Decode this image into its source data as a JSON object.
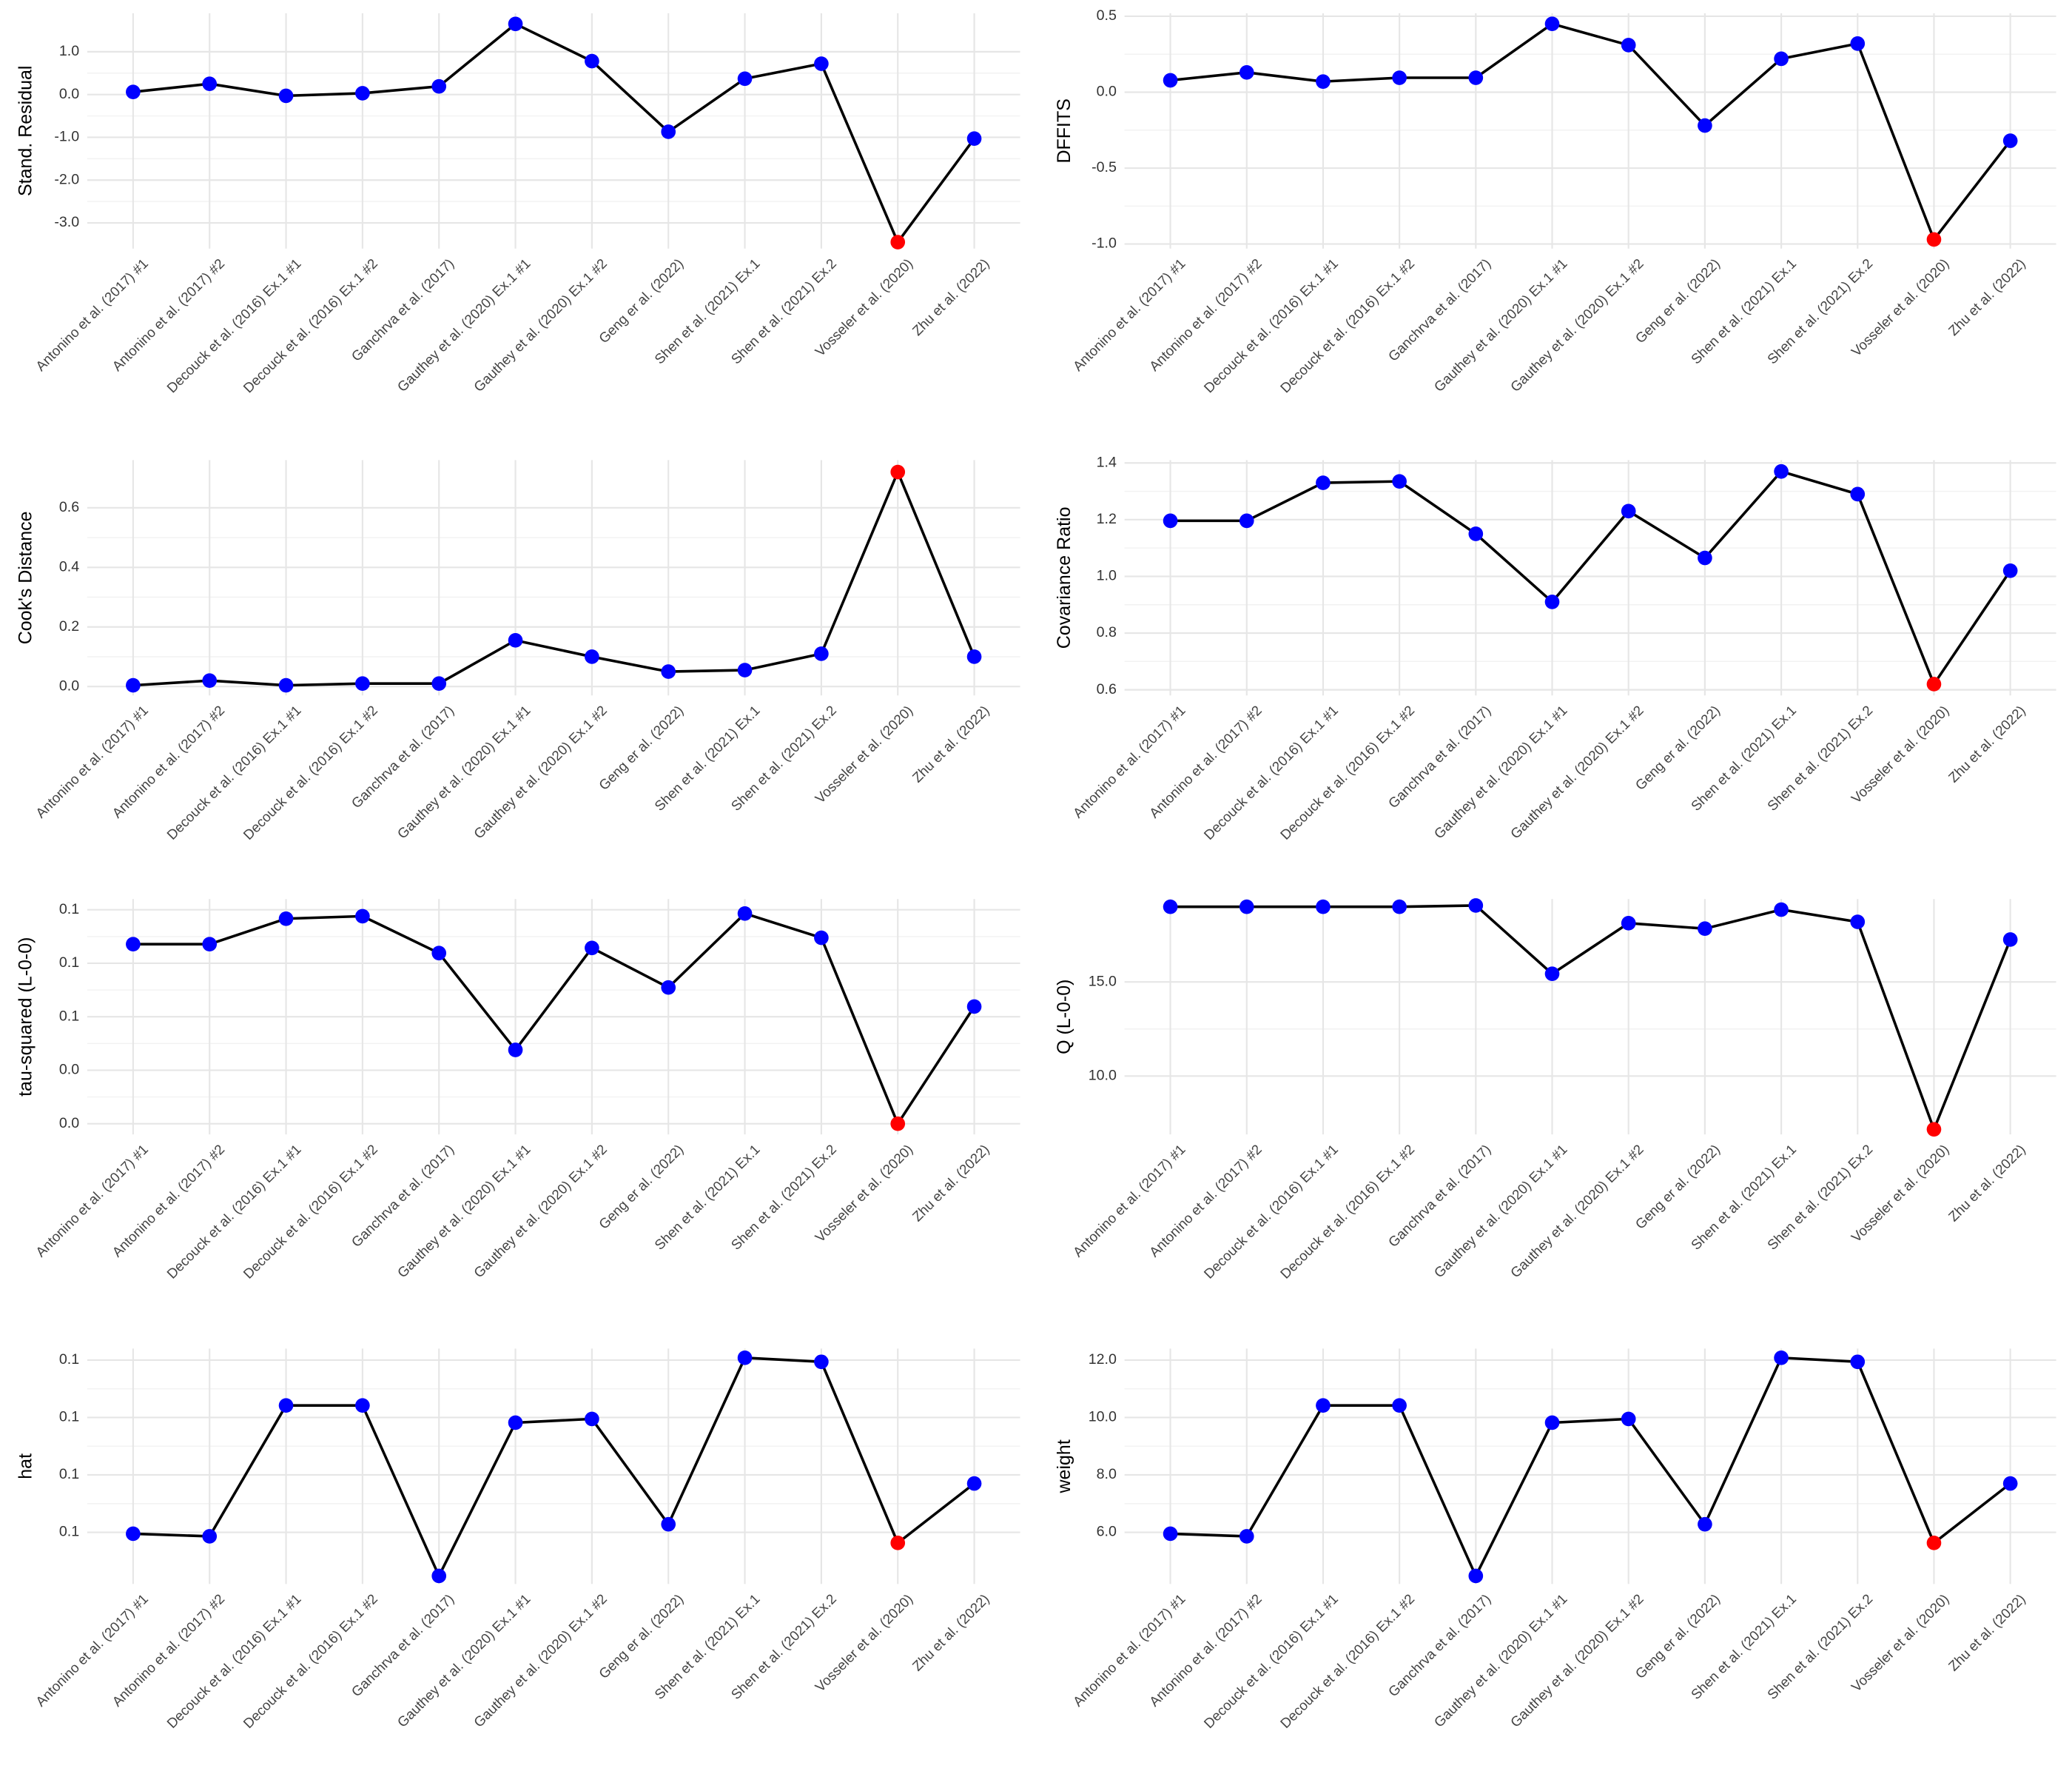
{
  "chart_data": [
    {
      "type": "line",
      "y_label": "Stand. Residual",
      "categories": [
        "Antonino et al. (2017) #1",
        "Antonino et al. (2017) #2",
        "Decouck et al. (2016) Ex.1 #1",
        "Decouck et al. (2016) Ex.1 #2",
        "Ganchrva et al. (2017)",
        "Gauthey et al. (2020) Ex.1 #1",
        "Gauthey et al. (2020) Ex.1 #2",
        "Geng er al. (2022)",
        "Shen et al. (2021) Ex.1",
        "Shen et al. (2021) Ex.2",
        "Vosseler et al. (2020)",
        "Zhu et al. (2022)"
      ],
      "values": [
        0.06,
        0.25,
        -0.03,
        0.03,
        0.19,
        1.65,
        0.78,
        -0.87,
        0.37,
        0.72,
        -3.45,
        -1.03
      ],
      "line_color": "#000000",
      "point_colors": [
        "#0000ff",
        "#0000ff",
        "#0000ff",
        "#0000ff",
        "#0000ff",
        "#0000ff",
        "#0000ff",
        "#0000ff",
        "#0000ff",
        "#0000ff",
        "#ff0000",
        "#0000ff"
      ],
      "ylim": [
        -3.6,
        1.9
      ],
      "yticks": [
        {
          "value": -3,
          "label": "-3.0"
        },
        {
          "value": -2,
          "label": "-2.0"
        },
        {
          "value": -1,
          "label": "-1.0"
        },
        {
          "value": 0,
          "label": "0.0"
        },
        {
          "value": 1,
          "label": "1.0"
        }
      ],
      "grid": true
    },
    {
      "type": "line",
      "y_label": "DFFITS",
      "categories": [
        "Antonino et al. (2017) #1",
        "Antonino et al. (2017) #2",
        "Decouck et al. (2016) Ex.1 #1",
        "Decouck et al. (2016) Ex.1 #2",
        "Ganchrva et al. (2017)",
        "Gauthey et al. (2020) Ex.1 #1",
        "Gauthey et al. (2020) Ex.1 #2",
        "Geng er al. (2022)",
        "Shen et al. (2021) Ex.1",
        "Shen et al. (2021) Ex.2",
        "Vosseler et al. (2020)",
        "Zhu et al. (2022)"
      ],
      "values": [
        0.078,
        0.13,
        0.07,
        0.095,
        0.095,
        0.45,
        0.31,
        -0.22,
        0.22,
        0.32,
        -0.97,
        -0.32
      ],
      "line_color": "#000000",
      "point_colors": [
        "#0000ff",
        "#0000ff",
        "#0000ff",
        "#0000ff",
        "#0000ff",
        "#0000ff",
        "#0000ff",
        "#0000ff",
        "#0000ff",
        "#0000ff",
        "#ff0000",
        "#0000ff"
      ],
      "ylim": [
        -1.03,
        0.52
      ],
      "yticks": [
        {
          "value": -1,
          "label": "-1.0"
        },
        -0.5,
        {
          "value": 0,
          "label": "0.0"
        },
        0.5
      ],
      "grid": true
    },
    {
      "type": "line",
      "y_label": "Cook's Distance",
      "categories": [
        "Antonino et al. (2017) #1",
        "Antonino et al. (2017) #2",
        "Decouck et al. (2016) Ex.1 #1",
        "Decouck et al. (2016) Ex.1 #2",
        "Ganchrva et al. (2017)",
        "Gauthey et al. (2020) Ex.1 #1",
        "Gauthey et al. (2020) Ex.1 #2",
        "Geng er al. (2022)",
        "Shen et al. (2021) Ex.1",
        "Shen et al. (2021) Ex.2",
        "Vosseler et al. (2020)",
        "Zhu et al. (2022)"
      ],
      "values": [
        0.004,
        0.02,
        0.004,
        0.01,
        0.01,
        0.155,
        0.1,
        0.05,
        0.055,
        0.11,
        0.72,
        0.1
      ],
      "line_color": "#000000",
      "point_colors": [
        "#0000ff",
        "#0000ff",
        "#0000ff",
        "#0000ff",
        "#0000ff",
        "#0000ff",
        "#0000ff",
        "#0000ff",
        "#0000ff",
        "#0000ff",
        "#ff0000",
        "#0000ff"
      ],
      "ylim": [
        -0.03,
        0.76
      ],
      "yticks": [
        {
          "value": 0,
          "label": "0.0"
        },
        0.2,
        0.4,
        0.6
      ],
      "grid": true
    },
    {
      "type": "line",
      "y_label": "Covariance Ratio",
      "categories": [
        "Antonino et al. (2017) #1",
        "Antonino et al. (2017) #2",
        "Decouck et al. (2016) Ex.1 #1",
        "Decouck et al. (2016) Ex.1 #2",
        "Ganchrva et al. (2017)",
        "Gauthey et al. (2020) Ex.1 #1",
        "Gauthey et al. (2020) Ex.1 #2",
        "Geng er al. (2022)",
        "Shen et al. (2021) Ex.1",
        "Shen et al. (2021) Ex.2",
        "Vosseler et al. (2020)",
        "Zhu et al. (2022)"
      ],
      "values": [
        1.196,
        1.196,
        1.33,
        1.335,
        1.15,
        0.91,
        1.23,
        1.065,
        1.37,
        1.29,
        0.62,
        1.02
      ],
      "line_color": "#000000",
      "point_colors": [
        "#0000ff",
        "#0000ff",
        "#0000ff",
        "#0000ff",
        "#0000ff",
        "#0000ff",
        "#0000ff",
        "#0000ff",
        "#0000ff",
        "#0000ff",
        "#ff0000",
        "#0000ff"
      ],
      "ylim": [
        0.58,
        1.41
      ],
      "yticks": [
        0.6,
        0.8,
        {
          "value": 1,
          "label": "1.0"
        },
        1.2,
        1.4
      ],
      "grid": true
    },
    {
      "type": "line",
      "y_label": "tau-squared (L-0-0)",
      "categories": [
        "Antonino et al. (2017) #1",
        "Antonino et al. (2017) #2",
        "Decouck et al. (2016) Ex.1 #1",
        "Decouck et al. (2016) Ex.1 #2",
        "Ganchrva et al. (2017)",
        "Gauthey et al. (2020) Ex.1 #1",
        "Gauthey et al. (2020) Ex.1 #2",
        "Geng er al. (2022)",
        "Shen et al. (2021) Ex.1",
        "Shen et al. (2021) Ex.2",
        "Vosseler et al. (2020)",
        "Zhu et al. (2022)"
      ],
      "values": [
        0.1007,
        0.1007,
        0.115,
        0.1164,
        0.0957,
        0.0414,
        0.0986,
        0.0764,
        0.1179,
        0.1043,
        0.0,
        0.0657
      ],
      "line_color": "#000000",
      "point_colors": [
        "#0000ff",
        "#0000ff",
        "#0000ff",
        "#0000ff",
        "#0000ff",
        "#0000ff",
        "#0000ff",
        "#0000ff",
        "#0000ff",
        "#0000ff",
        "#ff0000",
        "#0000ff"
      ],
      "ylim": [
        -0.006,
        0.126
      ],
      "yticks": [
        {
          "value": 0,
          "label": "0.0"
        },
        {
          "value": 0.03,
          "label": "0.0"
        },
        {
          "value": 0.06,
          "label": "0.1"
        },
        {
          "value": 0.09,
          "label": "0.1"
        },
        {
          "value": 0.12,
          "label": "0.1"
        }
      ],
      "grid": true
    },
    {
      "type": "line",
      "y_label": "Q (L-0-0)",
      "categories": [
        "Antonino et al. (2017) #1",
        "Antonino et al. (2017) #2",
        "Decouck et al. (2016) Ex.1 #1",
        "Decouck et al. (2016) Ex.1 #2",
        "Ganchrva et al. (2017)",
        "Gauthey et al. (2020) Ex.1 #1",
        "Gauthey et al. (2020) Ex.1 #2",
        "Geng er al. (2022)",
        "Shen et al. (2021) Ex.1",
        "Shen et al. (2021) Ex.2",
        "Vosseler et al. (2020)",
        "Zhu et al. (2022)"
      ],
      "values": [
        18.99,
        18.99,
        18.99,
        18.99,
        19.06,
        15.43,
        18.12,
        17.83,
        18.84,
        18.19,
        7.17,
        17.25
      ],
      "line_color": "#000000",
      "point_colors": [
        "#0000ff",
        "#0000ff",
        "#0000ff",
        "#0000ff",
        "#0000ff",
        "#0000ff",
        "#0000ff",
        "#0000ff",
        "#0000ff",
        "#0000ff",
        "#ff0000",
        "#0000ff"
      ],
      "ylim": [
        6.9,
        19.4
      ],
      "yticks": [
        {
          "value": 10,
          "label": "10.0"
        },
        {
          "value": 15,
          "label": "15.0"
        }
      ],
      "grid": true
    },
    {
      "type": "line",
      "y_label": "hat",
      "categories": [
        "Antonino et al. (2017) #1",
        "Antonino et al. (2017) #2",
        "Decouck et al. (2016) Ex.1 #1",
        "Decouck et al. (2016) Ex.1 #2",
        "Ganchrva et al. (2017)",
        "Gauthey et al. (2020) Ex.1 #1",
        "Gauthey et al. (2020) Ex.1 #2",
        "Geng er al. (2022)",
        "Shen et al. (2021) Ex.1",
        "Shen et al. (2021) Ex.2",
        "Vosseler et al. (2020)",
        "Zhu et al. (2022)"
      ],
      "values": [
        0.0595,
        0.0586,
        0.1042,
        0.1042,
        0.0448,
        0.0982,
        0.0995,
        0.0628,
        0.1208,
        0.1194,
        0.0563,
        0.077
      ],
      "line_color": "#000000",
      "point_colors": [
        "#0000ff",
        "#0000ff",
        "#0000ff",
        "#0000ff",
        "#0000ff",
        "#0000ff",
        "#0000ff",
        "#0000ff",
        "#0000ff",
        "#0000ff",
        "#ff0000",
        "#0000ff"
      ],
      "ylim": [
        0.042,
        0.124
      ],
      "yticks": [
        {
          "value": 0.06,
          "label": "0.1"
        },
        {
          "value": 0.08,
          "label": "0.1"
        },
        {
          "value": 0.1,
          "label": "0.1"
        },
        {
          "value": 0.12,
          "label": "0.1"
        }
      ],
      "grid": true
    },
    {
      "type": "line",
      "y_label": "weight",
      "categories": [
        "Antonino et al. (2017) #1",
        "Antonino et al. (2017) #2",
        "Decouck et al. (2016) Ex.1 #1",
        "Decouck et al. (2016) Ex.1 #2",
        "Ganchrva et al. (2017)",
        "Gauthey et al. (2020) Ex.1 #1",
        "Gauthey et al. (2020) Ex.1 #2",
        "Geng er al. (2022)",
        "Shen et al. (2021) Ex.1",
        "Shen et al. (2021) Ex.2",
        "Vosseler et al. (2020)",
        "Zhu et al. (2022)"
      ],
      "values": [
        5.95,
        5.86,
        10.42,
        10.42,
        4.48,
        9.82,
        9.95,
        6.28,
        12.08,
        11.94,
        5.63,
        7.7
      ],
      "line_color": "#000000",
      "point_colors": [
        "#0000ff",
        "#0000ff",
        "#0000ff",
        "#0000ff",
        "#0000ff",
        "#0000ff",
        "#0000ff",
        "#0000ff",
        "#0000ff",
        "#0000ff",
        "#ff0000",
        "#0000ff"
      ],
      "ylim": [
        4.2,
        12.4
      ],
      "yticks": [
        {
          "value": 6,
          "label": "6.0"
        },
        {
          "value": 8,
          "label": "8.0"
        },
        {
          "value": 10,
          "label": "10.0"
        },
        {
          "value": 12,
          "label": "12.0"
        }
      ],
      "grid": true
    }
  ]
}
